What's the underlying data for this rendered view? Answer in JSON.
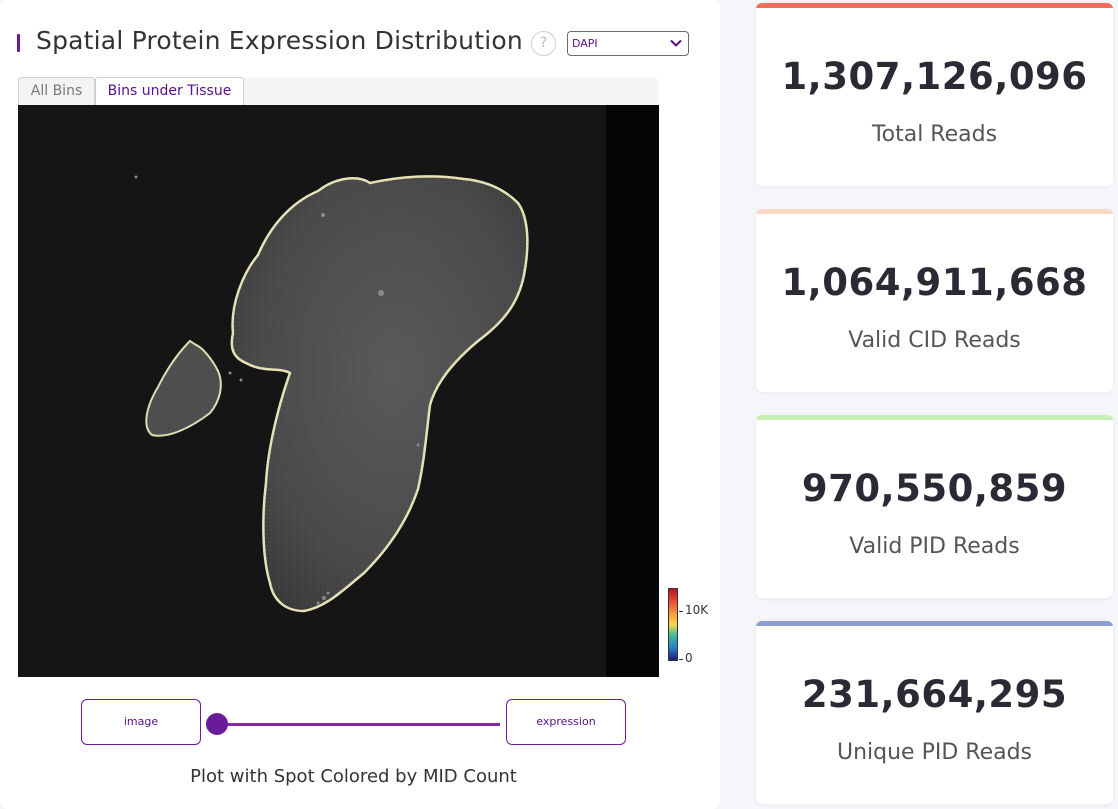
{
  "header": {
    "title": "Spatial Protein Expression Distribution",
    "help_icon": "?",
    "channel_select": {
      "value": "DAPI",
      "icon": "chevron-down-icon"
    }
  },
  "tabs": [
    {
      "label": "All Bins",
      "active": false
    },
    {
      "label": "Bins under Tissue",
      "active": true
    }
  ],
  "plot": {
    "colorbar": {
      "max_label": "10K",
      "min_label": "0"
    },
    "caption": "Plot with Spot Colored by MID Count"
  },
  "blend_control": {
    "left_label": "image",
    "right_label": "expression",
    "value": 0
  },
  "stats": [
    {
      "value": "1,307,126,096",
      "label": "Total Reads",
      "color": "#f56c5b"
    },
    {
      "value": "1,064,911,668",
      "label": "Valid CID Reads",
      "color": "#fbd9c9"
    },
    {
      "value": "970,550,859",
      "label": "Valid PID Reads",
      "color": "#c5f0b4"
    },
    {
      "value": "231,664,295",
      "label": "Unique PID Reads",
      "color": "#8e9cd1"
    }
  ]
}
